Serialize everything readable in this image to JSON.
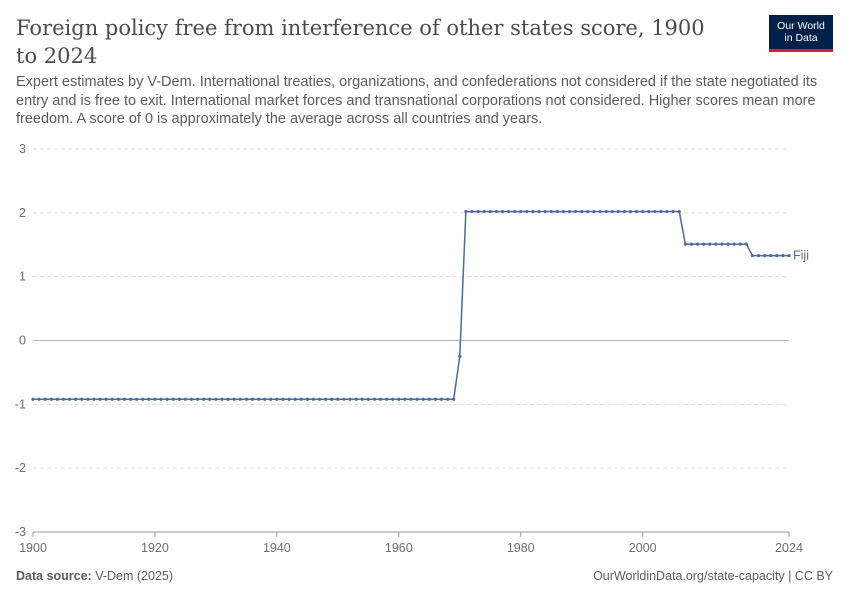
{
  "header": {
    "title": "Foreign policy free from interference of other states score, 1900 to 2024",
    "subtitle": "Expert estimates by V-Dem. International treaties, organizations, and confederations not considered if the state negotiated its entry and is free to exit. International market forces and transnational corporations not considered. Higher scores mean more freedom. A score of 0 is approximately the average across all countries and years.",
    "logo_line1": "Our World",
    "logo_line2": "in Data"
  },
  "footer": {
    "source_label": "Data source:",
    "source_value": "V-Dem (2025)",
    "credit": "OurWorldinData.org/state-capacity | CC BY"
  },
  "colors": {
    "series": "#4c6a9c",
    "grid": "#dddddd",
    "zero_line": "#b3b3b3",
    "axis_text": "#6e6e6e",
    "logo_bg": "#002147",
    "logo_accent": "#ce261e"
  },
  "chart_data": {
    "type": "line",
    "title": "Foreign policy free from interference of other states score, 1900 to 2024",
    "xlabel": "",
    "ylabel": "",
    "xlim": [
      1900,
      2024
    ],
    "ylim": [
      -3,
      3
    ],
    "x_ticks": [
      "1900",
      "1920",
      "1940",
      "1960",
      "1980",
      "2000",
      "2024"
    ],
    "x_tick_values": [
      1900,
      1920,
      1940,
      1960,
      1980,
      2000,
      2024
    ],
    "y_ticks": [
      "3",
      "2",
      "1",
      "0",
      "-1",
      "-2",
      "-3"
    ],
    "y_tick_values": [
      3,
      2,
      1,
      0,
      -1,
      -2,
      -3
    ],
    "grid": "horizontal dashed",
    "legend": "inline label at end of line",
    "series": [
      {
        "name": "Fiji",
        "segments": [
          {
            "from": 1900,
            "to": 1969,
            "value": -0.92
          },
          {
            "from": 1970,
            "to": 1970,
            "value": -0.25
          },
          {
            "from": 1971,
            "to": 2006,
            "value": 2.02
          },
          {
            "from": 2007,
            "to": 2017,
            "value": 1.51
          },
          {
            "from": 2018,
            "to": 2024,
            "value": 1.33
          }
        ]
      }
    ]
  }
}
